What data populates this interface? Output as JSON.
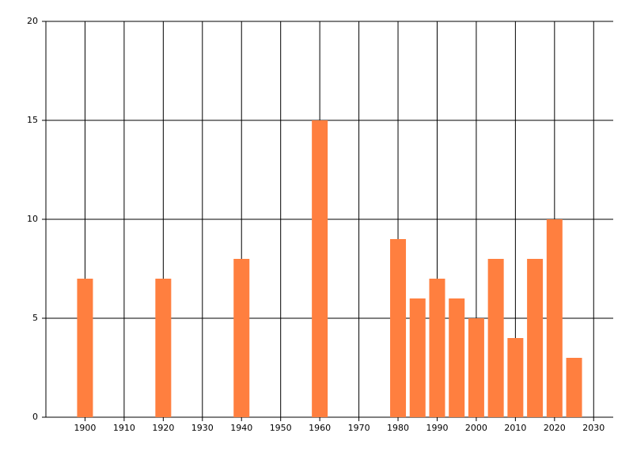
{
  "chart_data": {
    "type": "bar",
    "x": [
      1900,
      1920,
      1940,
      1960,
      1980,
      1985,
      1990,
      1995,
      2000,
      2005,
      2010,
      2015,
      2020,
      2025
    ],
    "values": [
      7,
      7,
      8,
      15,
      9,
      6,
      7,
      6,
      5,
      8,
      4,
      8,
      10,
      3
    ],
    "color": "#ff7f3f",
    "xlim": [
      1890,
      2035
    ],
    "xticks": [
      1900,
      1910,
      1920,
      1930,
      1940,
      1950,
      1960,
      1970,
      1980,
      1990,
      2000,
      2010,
      2020,
      2030
    ],
    "ylim": [
      0,
      20
    ],
    "yticks": [
      0,
      5,
      10,
      15,
      20
    ],
    "grid": true
  }
}
